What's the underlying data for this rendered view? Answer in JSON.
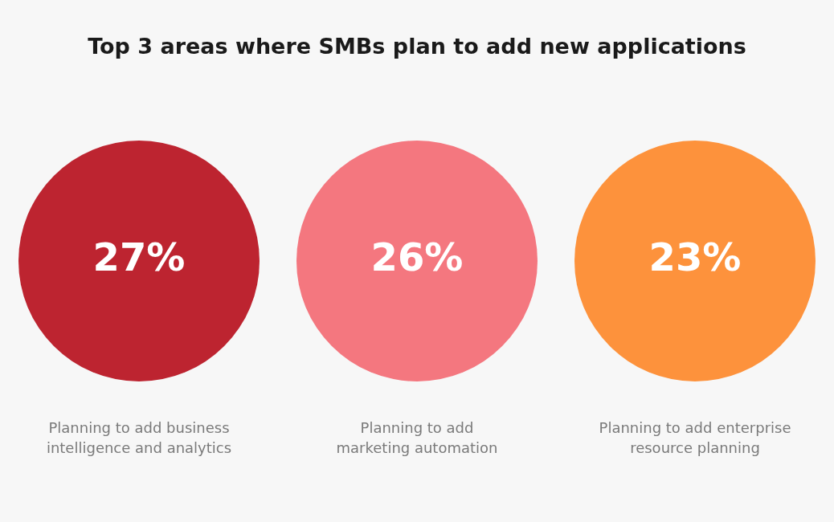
{
  "chart_data": {
    "type": "other",
    "title": "Top 3 areas where SMBs plan to add new applications",
    "categories": [
      "Planning to add business intelligence and analytics",
      "Planning to add marketing automation",
      "Planning to add enterprise resource planning"
    ],
    "values": [
      27,
      26,
      23
    ],
    "value_labels": [
      "27%",
      "26%",
      "23%"
    ],
    "colors": [
      "#bd2430",
      "#f4777f",
      "#fd923c"
    ]
  }
}
